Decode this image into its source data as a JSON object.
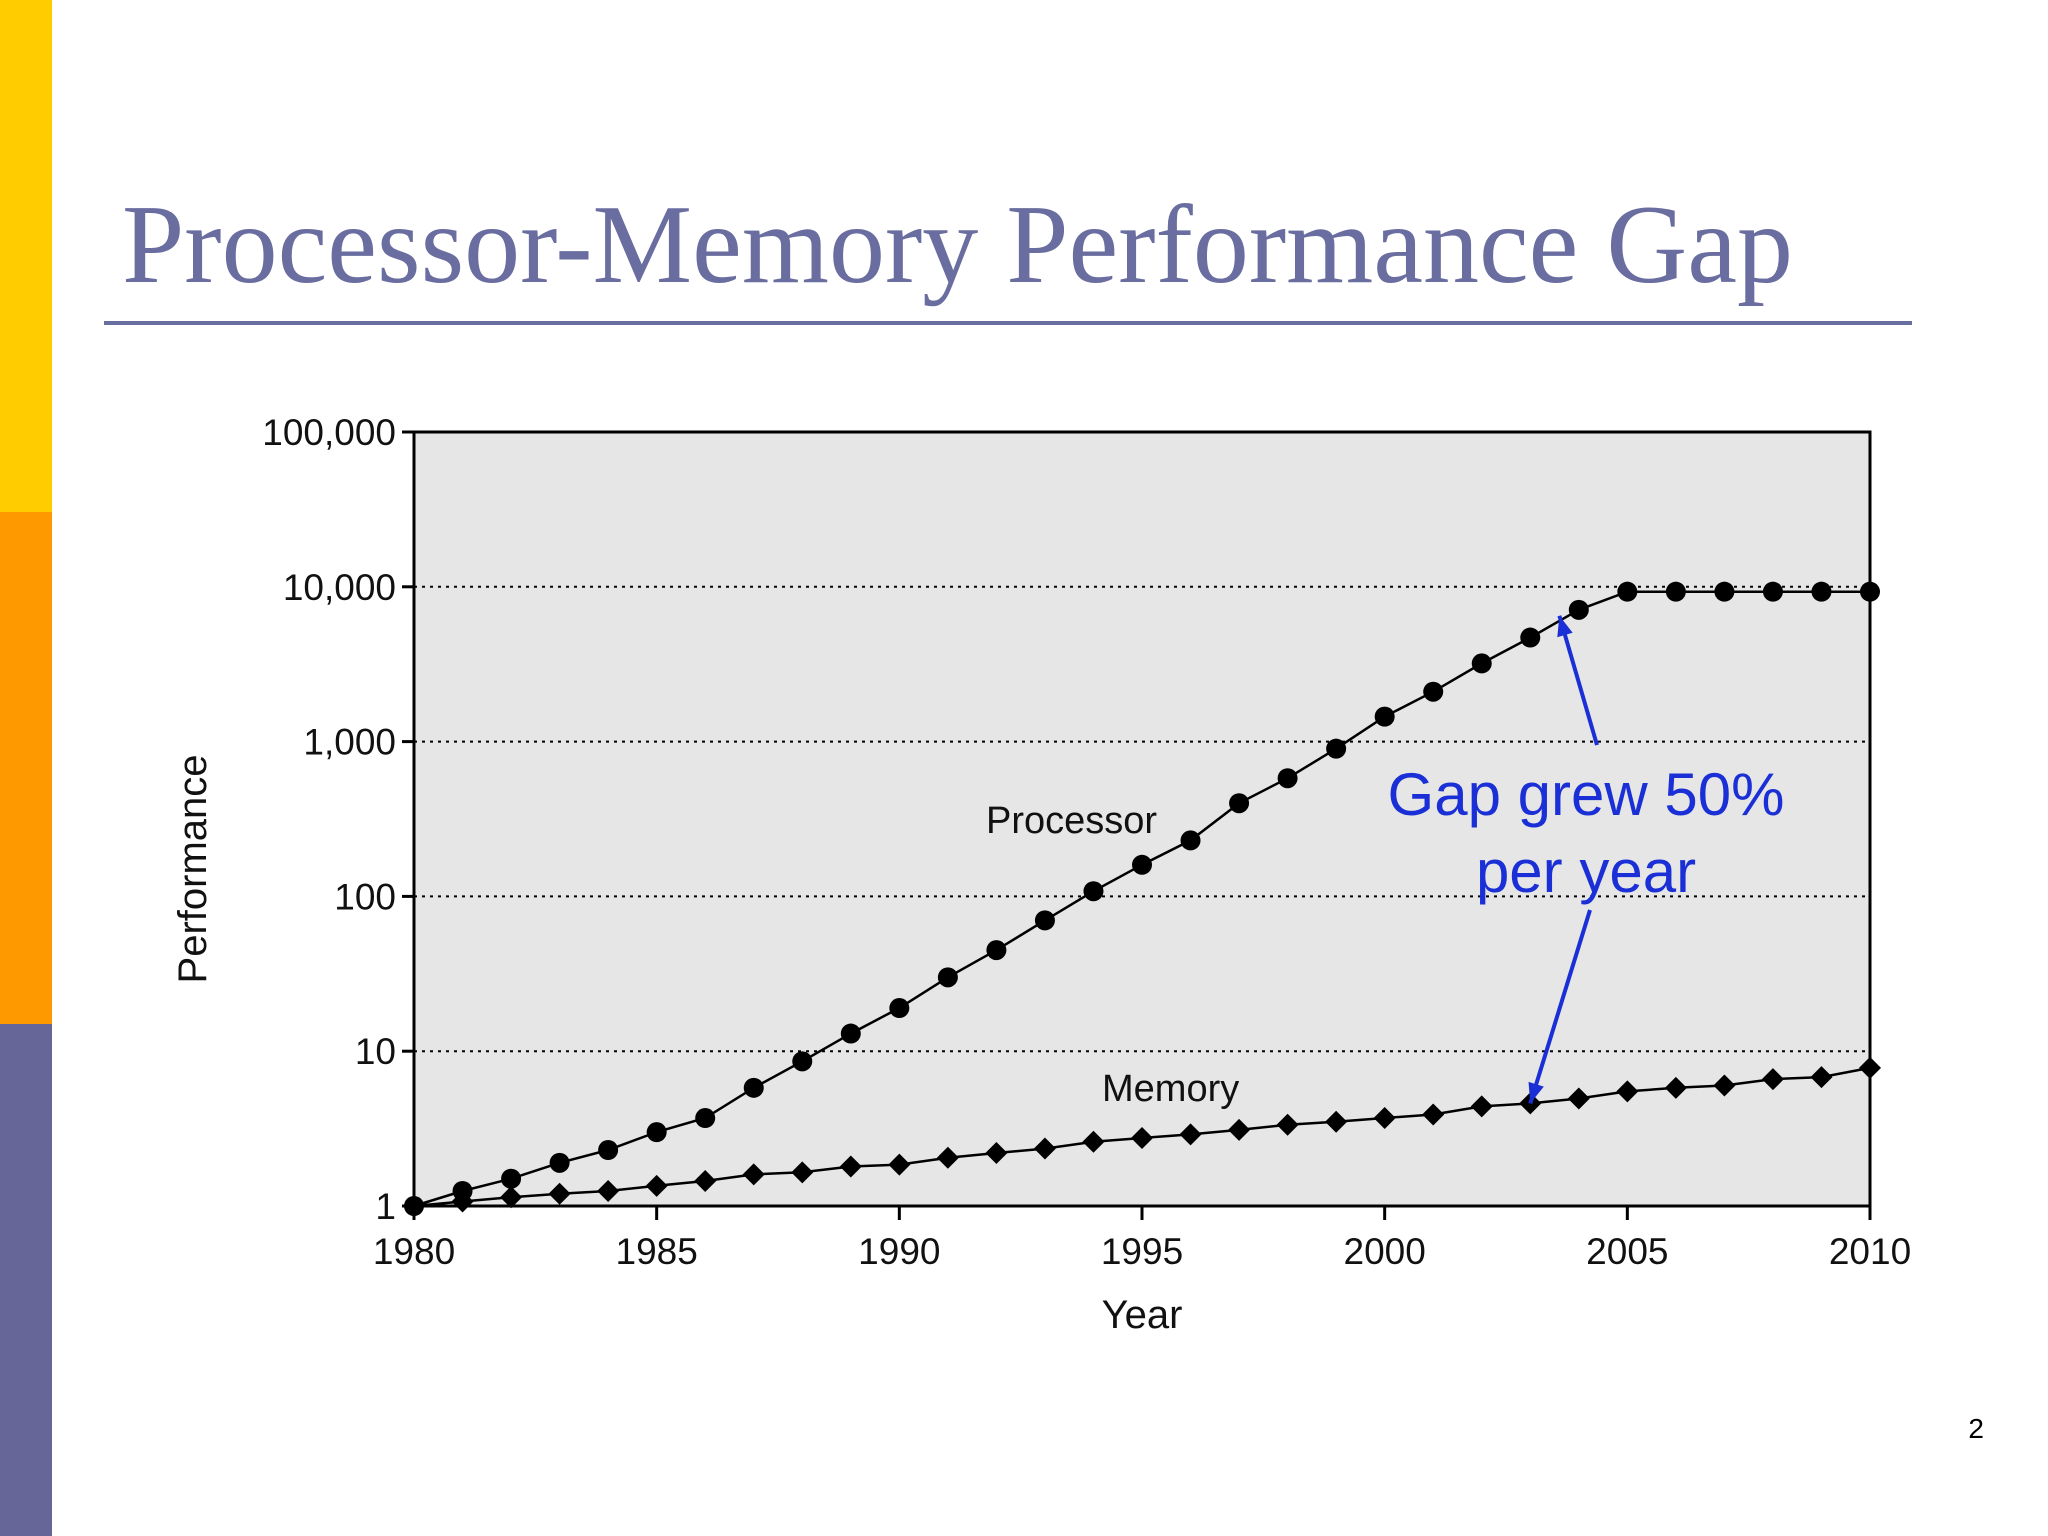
{
  "slide": {
    "title": "Processor-Memory Performance Gap",
    "page_number": "2",
    "title_color": "#6a6d9f",
    "rule_color": "#6a6d9f",
    "side_bar_colors": [
      "#ffcc00",
      "#ff9900",
      "#666699"
    ]
  },
  "chart_data": {
    "type": "line",
    "xlabel": "Year",
    "ylabel": "Performance",
    "xlim": [
      1980,
      2010
    ],
    "ylim": [
      1,
      100000
    ],
    "yscale": "log",
    "x_ticks": [
      1980,
      1985,
      1990,
      1995,
      2000,
      2005,
      2010
    ],
    "y_ticks": [
      {
        "value": 1,
        "label": "1"
      },
      {
        "value": 10,
        "label": "10"
      },
      {
        "value": 100,
        "label": "100"
      },
      {
        "value": 1000,
        "label": "1,000"
      },
      {
        "value": 10000,
        "label": "10,000"
      },
      {
        "value": 100000,
        "label": "100,000"
      }
    ],
    "grid": "horizontal dotted",
    "plot_background": "#e6e6e6",
    "x": [
      1980,
      1981,
      1982,
      1983,
      1984,
      1985,
      1986,
      1987,
      1988,
      1989,
      1990,
      1991,
      1992,
      1993,
      1994,
      1995,
      1996,
      1997,
      1998,
      1999,
      2000,
      2001,
      2002,
      2003,
      2004,
      2005,
      2006,
      2007,
      2008,
      2009,
      2010
    ],
    "series": [
      {
        "name": "Processor",
        "marker": "circle",
        "values": [
          1,
          1.25,
          1.5,
          1.9,
          2.3,
          3,
          3.7,
          5.8,
          8.6,
          13,
          19,
          30,
          45,
          70,
          108,
          160,
          230,
          400,
          580,
          900,
          1450,
          2100,
          3200,
          4700,
          7100,
          9300,
          9300,
          9300,
          9300,
          9300,
          9300
        ]
      },
      {
        "name": "Memory",
        "marker": "diamond",
        "values": [
          1,
          1.07,
          1.14,
          1.2,
          1.25,
          1.35,
          1.45,
          1.6,
          1.65,
          1.8,
          1.85,
          2.05,
          2.2,
          2.35,
          2.6,
          2.75,
          2.9,
          3.1,
          3.35,
          3.5,
          3.7,
          3.9,
          4.4,
          4.6,
          4.95,
          5.5,
          5.8,
          6,
          6.6,
          6.8,
          7.8
        ]
      }
    ],
    "annotations": [
      {
        "text_lines": [
          "Gap grew 50%",
          "per year"
        ],
        "color": "#1a2fd6",
        "arrows_to": [
          {
            "x": 2003.6,
            "y": 6500
          },
          {
            "x": 2003,
            "y": 4.6
          }
        ]
      }
    ]
  }
}
